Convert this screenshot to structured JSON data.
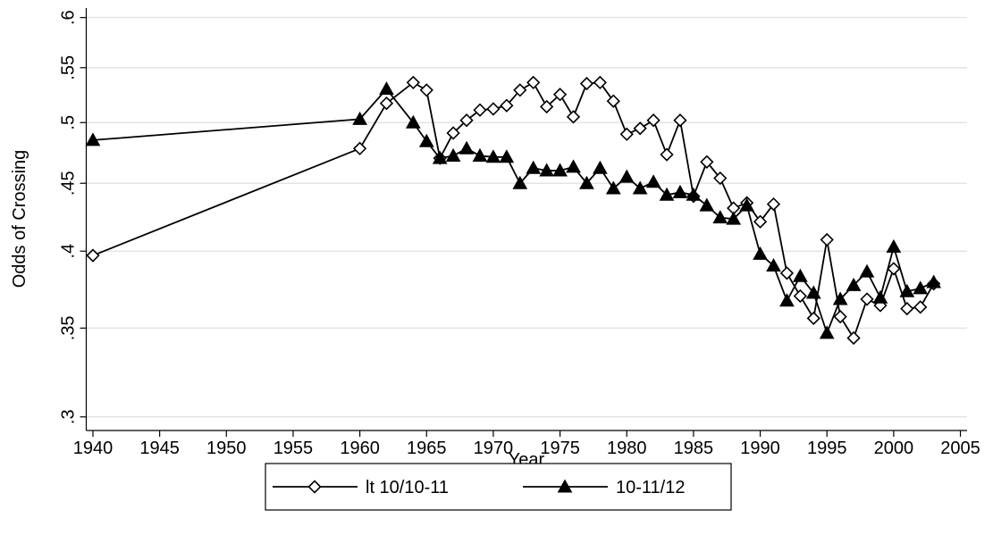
{
  "chart_data": {
    "type": "line",
    "y_label": "Odds of Crossing",
    "x_label": "Year",
    "x": [
      1940,
      1960,
      1962,
      1964,
      1965,
      1966,
      1967,
      1968,
      1969,
      1970,
      1971,
      1972,
      1973,
      1974,
      1975,
      1976,
      1977,
      1978,
      1979,
      1980,
      1981,
      1982,
      1983,
      1984,
      1985,
      1986,
      1987,
      1988,
      1989,
      1990,
      1991,
      1992,
      1993,
      1994,
      1995,
      1996,
      1997,
      1998,
      1999,
      2000,
      2001,
      2002,
      2003
    ],
    "series": [
      {
        "name": "lt 10/10-11",
        "color": "#000000",
        "marker": "diamond",
        "values": [
          0.397,
          0.478,
          0.517,
          0.536,
          0.529,
          0.47,
          0.491,
          0.502,
          0.511,
          0.512,
          0.515,
          0.529,
          0.536,
          0.514,
          0.525,
          0.505,
          0.535,
          0.536,
          0.519,
          0.49,
          0.495,
          0.502,
          0.473,
          0.502,
          0.44,
          0.467,
          0.454,
          0.431,
          0.435,
          0.421,
          0.434,
          0.385,
          0.37,
          0.356,
          0.408,
          0.357,
          0.344,
          0.368,
          0.364,
          0.388,
          0.362,
          0.363,
          0.378
        ]
      },
      {
        "name": "10-11/12",
        "color": "#000000",
        "marker": "triangle",
        "values": [
          0.485,
          0.503,
          0.53,
          0.5,
          0.484,
          0.47,
          0.472,
          0.478,
          0.472,
          0.471,
          0.471,
          0.45,
          0.462,
          0.46,
          0.46,
          0.463,
          0.45,
          0.462,
          0.446,
          0.455,
          0.446,
          0.451,
          0.441,
          0.443,
          0.441,
          0.433,
          0.424,
          0.423,
          0.433,
          0.398,
          0.39,
          0.367,
          0.383,
          0.372,
          0.347,
          0.368,
          0.377,
          0.386,
          0.369,
          0.403,
          0.373,
          0.375,
          0.379
        ]
      }
    ],
    "xlim": [
      1939.5,
      2005.5
    ],
    "xticks": [
      1940,
      1945,
      1950,
      1955,
      1960,
      1965,
      1970,
      1975,
      1980,
      1985,
      1990,
      1995,
      2000,
      2005
    ],
    "ylim": [
      0.293,
      0.61
    ],
    "y_log": true,
    "yticks": [
      {
        "value": 0.3,
        "label": ".3"
      },
      {
        "value": 0.35,
        "label": ".35"
      },
      {
        "value": 0.4,
        "label": ".4"
      },
      {
        "value": 0.45,
        "label": ".45"
      },
      {
        "value": 0.5,
        "label": ".5"
      },
      {
        "value": 0.55,
        "label": ".55"
      },
      {
        "value": 0.6,
        "label": ".6"
      }
    ],
    "grid": true,
    "legend": "bottom"
  }
}
